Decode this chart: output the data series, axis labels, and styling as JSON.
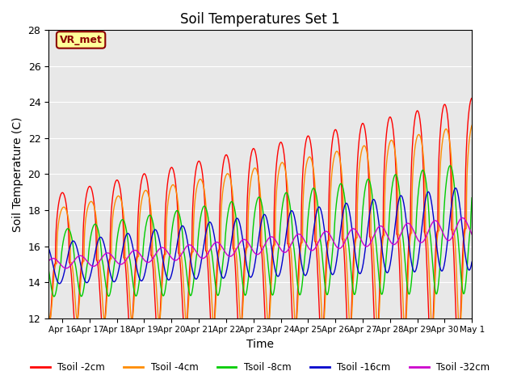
{
  "title": "Soil Temperatures Set 1",
  "xlabel": "Time",
  "ylabel": "Soil Temperature (C)",
  "ylim": [
    12,
    28
  ],
  "yticks": [
    12,
    14,
    16,
    18,
    20,
    22,
    24,
    26,
    28
  ],
  "xtick_labels": [
    "Apr 16",
    "Apr 17",
    "Apr 18",
    "Apr 19",
    "Apr 20",
    "Apr 21",
    "Apr 22",
    "Apr 23",
    "Apr 24",
    "Apr 25",
    "Apr 26",
    "Apr 27",
    "Apr 28",
    "Apr 29",
    "Apr 30",
    "May 1"
  ],
  "colors": {
    "Tsoil -2cm": "#FF0000",
    "Tsoil -4cm": "#FF8C00",
    "Tsoil -8cm": "#00CC00",
    "Tsoil -16cm": "#0000CC",
    "Tsoil -32cm": "#CC00CC"
  },
  "background_color": "#E8E8E8",
  "annotation_text": "VR_met",
  "annotation_color": "#8B0000",
  "annotation_bg": "#FFFF99",
  "annotation_border": "#8B0000"
}
